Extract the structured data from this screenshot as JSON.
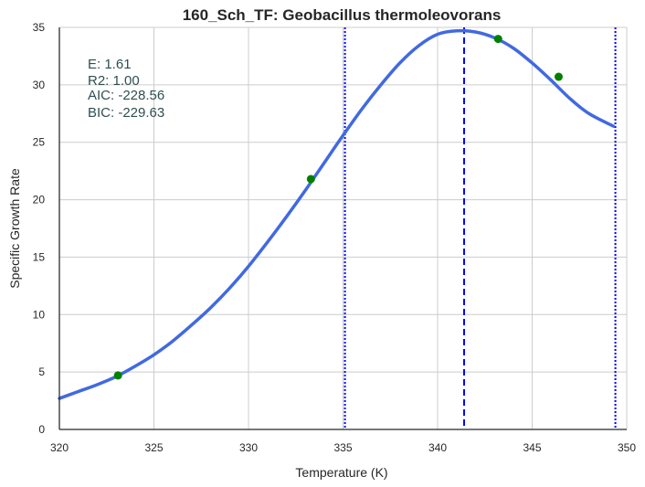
{
  "chart_data": {
    "type": "line",
    "title": "160_Sch_TF: Geobacillus thermoleovorans",
    "xlabel": "Temperature (K)",
    "ylabel": "Specific Growth Rate",
    "xlim": [
      320,
      350
    ],
    "ylim": [
      0,
      35
    ],
    "xticks": [
      320,
      325,
      330,
      335,
      340,
      345,
      350
    ],
    "yticks": [
      0,
      5,
      10,
      15,
      20,
      25,
      30,
      35
    ],
    "grid": true,
    "annotations": [
      "E:  1.61",
      "R2:  1.00",
      "AIC: -228.56",
      "BIC: -229.63"
    ],
    "fit_curve": {
      "color": "#4169e1",
      "x": [
        320,
        321,
        322,
        323,
        324,
        325,
        326,
        327,
        328,
        329,
        330,
        331,
        332,
        333,
        334,
        335,
        336,
        337,
        338,
        339,
        340,
        341,
        342,
        343,
        344,
        345,
        346,
        347,
        348,
        349.3
      ],
      "y": [
        2.7,
        3.3,
        3.9,
        4.6,
        5.5,
        6.5,
        7.7,
        9.1,
        10.6,
        12.3,
        14.2,
        16.3,
        18.5,
        20.8,
        23.2,
        25.6,
        27.9,
        30.0,
        31.9,
        33.4,
        34.4,
        34.7,
        34.6,
        34.1,
        33.2,
        31.9,
        30.4,
        28.8,
        27.5,
        26.4
      ]
    },
    "observed_points": {
      "color": "#008000",
      "x": [
        323.1,
        333.3,
        343.2,
        346.4
      ],
      "y": [
        4.7,
        21.8,
        34.0,
        30.7
      ]
    },
    "vertical_lines": [
      {
        "x": 335.1,
        "style": "dotted",
        "color": "#0000ff"
      },
      {
        "x": 341.4,
        "style": "dashed",
        "color": "#0000ff"
      },
      {
        "x": 349.4,
        "style": "dotted",
        "color": "#0000ff"
      }
    ]
  }
}
